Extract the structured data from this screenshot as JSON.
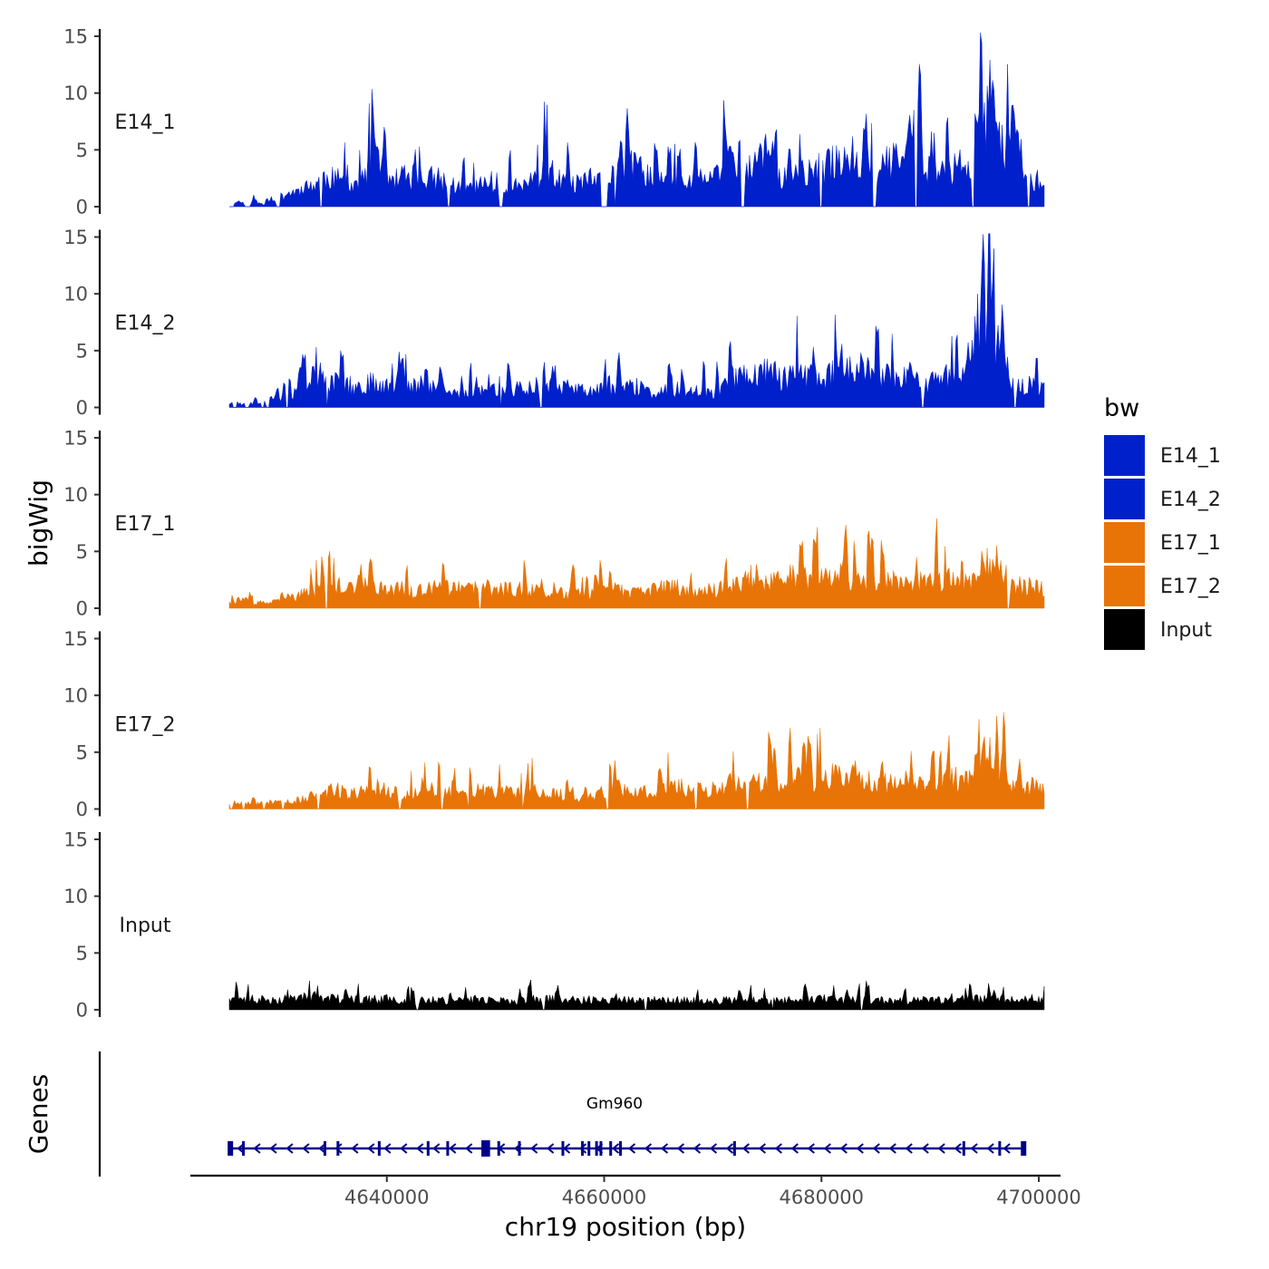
{
  "chart_data": {
    "type": "area",
    "xlabel": "chr19 position (bp)",
    "ylabel": "bigWig",
    "genes_ylabel": "Genes",
    "xlim": [
      4622000,
      4702000
    ],
    "data_xrange": [
      4625500,
      4700500
    ],
    "x_ticks": [
      4640000,
      4660000,
      4680000,
      4700000
    ],
    "x_tick_labels": [
      "4640000",
      "4660000",
      "4680000",
      "4700000"
    ],
    "ylim": [
      0,
      15
    ],
    "y_ticks": [
      0,
      5,
      10,
      15
    ],
    "y_tick_labels": [
      "0",
      "5",
      "10",
      "15"
    ],
    "legend": {
      "title": "bw",
      "entries": [
        {
          "label": "E14_1",
          "color": "#0020CC"
        },
        {
          "label": "E14_2",
          "color": "#0020CC"
        },
        {
          "label": "E17_1",
          "color": "#E87408"
        },
        {
          "label": "E17_2",
          "color": "#E87408"
        },
        {
          "label": "Input",
          "color": "#000000"
        }
      ]
    },
    "series": [
      {
        "name": "E14_1",
        "color": "#0020CC",
        "base": [
          0.3,
          0.6,
          0.3,
          0.6,
          0.3,
          0.4,
          0.9,
          1.4,
          1.6,
          1.9,
          2.2,
          3.0,
          3.1,
          2.9,
          2.6,
          2.2,
          2.6,
          4.0,
          4.2,
          3.9,
          3.0,
          2.4,
          2.7,
          2.9,
          3.1,
          3.0,
          2.7,
          2.4,
          2.0,
          1.9,
          2.2,
          2.4,
          2.6,
          2.4,
          2.3,
          2.2,
          2.5,
          2.6,
          3.5,
          3.9,
          2.8,
          2.4,
          2.4,
          2.6,
          2.9,
          2.6,
          2.7,
          3.9,
          4.3,
          4.2,
          4.0,
          3.3,
          2.7,
          2.6,
          2.6,
          2.4,
          2.6,
          3.1,
          3.1,
          3.0,
          4.2,
          5.0,
          4.7,
          4.3,
          4.4,
          5.0,
          5.3,
          3.0,
          3.2,
          3.4,
          3.6,
          3.8,
          4.0,
          4.5,
          5.1,
          5.6,
          5.1,
          4.7,
          4.6,
          4.8,
          4.6,
          4.8,
          5.2,
          6.0,
          4.4,
          3.4,
          3.5,
          3.7,
          3.9,
          4.6,
          5.2,
          8.6,
          10.2,
          8.0,
          6.0,
          4.6,
          3.3,
          3.1,
          2.8,
          2.2
        ],
        "peaks": [
          [
            4639100,
            2.0,
            150
          ],
          [
            4641500,
            2.0,
            150
          ],
          [
            4642600,
            2.5,
            150
          ],
          [
            4661500,
            3.0,
            150
          ],
          [
            4668400,
            3.0,
            150
          ],
          [
            4670400,
            1.0,
            150
          ],
          [
            4674900,
            3.0,
            150
          ],
          [
            4688000,
            3.0,
            150
          ],
          [
            4689100,
            4.5,
            150
          ],
          [
            4690100,
            3.5,
            150
          ],
          [
            4695600,
            4.0,
            150
          ],
          [
            4696100,
            3.0,
            150
          ]
        ],
        "gaps": [
          [
            4625500,
            4625900
          ],
          [
            4627000,
            4627400
          ],
          [
            4629800,
            4630200
          ],
          [
            4633800,
            4634000
          ],
          [
            4645600,
            4645800
          ],
          [
            4650300,
            4650700
          ],
          [
            4659700,
            4660300
          ],
          [
            4660900,
            4661100
          ],
          [
            4672600,
            4672900
          ],
          [
            4679800,
            4680100
          ],
          [
            4684700,
            4685000
          ],
          [
            4688600,
            4688800
          ],
          [
            4693800,
            4694100
          ],
          [
            4699000,
            4699200
          ]
        ],
        "seed": 11
      },
      {
        "name": "E14_2",
        "color": "#0020CC",
        "base": [
          0.4,
          0.5,
          0.3,
          0.5,
          0.3,
          0.5,
          0.9,
          1.1,
          1.6,
          2.0,
          2.2,
          2.6,
          2.8,
          2.6,
          2.3,
          2.1,
          2.4,
          2.6,
          2.6,
          2.4,
          2.2,
          2.2,
          2.1,
          2.4,
          2.6,
          2.3,
          1.7,
          1.5,
          1.6,
          1.8,
          1.8,
          1.9,
          1.8,
          1.6,
          1.8,
          2.0,
          2.1,
          2.2,
          2.2,
          2.2,
          2.2,
          2.1,
          2.0,
          1.8,
          1.8,
          1.8,
          1.9,
          1.9,
          2.1,
          2.2,
          2.1,
          1.6,
          1.5,
          1.7,
          1.9,
          1.9,
          2.0,
          2.1,
          1.6,
          1.5,
          2.2,
          3.3,
          3.4,
          3.3,
          3.6,
          3.8,
          4.1,
          3.1,
          3.2,
          3.3,
          3.4,
          3.2,
          3.1,
          3.3,
          4.2,
          4.4,
          4.4,
          4.3,
          3.4,
          3.3,
          3.3,
          3.4,
          3.3,
          3.0,
          2.5,
          2.5,
          3.0,
          3.3,
          3.4,
          3.3,
          4.0,
          9.0,
          10.0,
          7.0,
          5.0,
          3.0,
          2.5,
          2.4,
          2.1,
          1.9
        ],
        "peaks": [
          [
            4641100,
            1.5,
            150
          ],
          [
            4649400,
            1.0,
            150
          ],
          [
            4661400,
            2.0,
            150
          ],
          [
            4679200,
            2.5,
            150
          ],
          [
            4681800,
            2.5,
            150
          ],
          [
            4688100,
            2.5,
            150
          ],
          [
            4694900,
            4.0,
            150
          ]
        ],
        "gaps": [
          [
            4625800,
            4626200
          ],
          [
            4626900,
            4627300
          ],
          [
            4628500,
            4628700
          ],
          [
            4629000,
            4629200
          ],
          [
            4630700,
            4630900
          ],
          [
            4634400,
            4634600
          ],
          [
            4650400,
            4650600
          ],
          [
            4654100,
            4654300
          ],
          [
            4689200,
            4689400
          ],
          [
            4697700,
            4697900
          ]
        ],
        "seed": 23
      },
      {
        "name": "E17_1",
        "color": "#E87408",
        "base": [
          0.6,
          0.9,
          0.8,
          0.5,
          0.6,
          0.6,
          0.7,
          1.0,
          1.2,
          1.5,
          1.9,
          2.1,
          2.2,
          2.3,
          2.4,
          2.4,
          2.5,
          2.5,
          2.4,
          2.3,
          2.2,
          2.0,
          1.8,
          1.8,
          1.9,
          2.1,
          2.3,
          2.2,
          2.0,
          2.0,
          2.1,
          2.2,
          2.1,
          2.0,
          2.0,
          2.1,
          2.1,
          1.9,
          1.7,
          1.6,
          1.6,
          1.6,
          1.6,
          1.5,
          1.5,
          1.6,
          1.8,
          1.9,
          1.7,
          1.6,
          1.7,
          1.9,
          2.1,
          2.2,
          2.3,
          2.2,
          1.9,
          1.8,
          1.9,
          2.0,
          2.2,
          2.3,
          2.6,
          3.2,
          3.4,
          3.1,
          2.7,
          2.8,
          3.1,
          3.3,
          3.1,
          2.9,
          3.0,
          3.1,
          3.5,
          3.3,
          3.1,
          3.1,
          3.0,
          3.1,
          3.1,
          3.2,
          3.2,
          2.9,
          2.7,
          2.7,
          2.9,
          3.0,
          2.9,
          2.7,
          2.9,
          4.5,
          6.0,
          5.0,
          4.0,
          2.6,
          2.4,
          2.3,
          2.3,
          2.2
        ],
        "peaks": [
          [
            4659700,
            3.0,
            150
          ],
          [
            4682100,
            2.5,
            150
          ],
          [
            4690600,
            2.0,
            150
          ]
        ],
        "gaps": [
          [
            4634300,
            4634500
          ],
          [
            4648500,
            4648700
          ],
          [
            4697100,
            4697300
          ]
        ],
        "seed": 37
      },
      {
        "name": "E17_2",
        "color": "#E87408",
        "base": [
          0.8,
          0.8,
          0.6,
          0.6,
          0.6,
          0.7,
          0.7,
          0.8,
          0.9,
          1.1,
          1.4,
          1.6,
          1.9,
          2.0,
          1.8,
          1.6,
          1.8,
          2.1,
          2.3,
          2.1,
          1.8,
          1.6,
          1.6,
          1.7,
          1.9,
          2.1,
          2.0,
          1.7,
          1.5,
          1.6,
          1.9,
          2.0,
          1.9,
          1.8,
          1.8,
          1.9,
          1.9,
          1.9,
          1.8,
          1.6,
          1.6,
          1.6,
          1.3,
          1.1,
          1.2,
          1.5,
          1.8,
          2.1,
          2.1,
          1.9,
          1.7,
          1.8,
          2.1,
          2.4,
          2.3,
          2.4,
          2.1,
          2.1,
          2.1,
          2.1,
          2.2,
          2.7,
          2.6,
          2.6,
          2.8,
          2.9,
          2.9,
          2.6,
          3.0,
          3.1,
          3.2,
          3.2,
          3.1,
          3.3,
          3.6,
          3.6,
          3.8,
          3.4,
          2.8,
          2.7,
          2.7,
          2.9,
          3.0,
          2.8,
          2.6,
          2.6,
          2.8,
          3.1,
          3.1,
          3.1,
          3.1,
          5.0,
          6.0,
          5.0,
          4.0,
          2.6,
          2.6,
          2.5,
          2.3,
          2.2
        ],
        "peaks": [
          [
            4661000,
            2.5,
            150
          ],
          [
            4677100,
            4.0,
            150
          ],
          [
            4685500,
            2.0,
            150
          ],
          [
            4688300,
            2.0,
            150
          ],
          [
            4698300,
            1.5,
            150
          ]
        ],
        "gaps": [
          [
            4625600,
            4625800
          ],
          [
            4626700,
            4626900
          ],
          [
            4628600,
            4628800
          ],
          [
            4630300,
            4630500
          ],
          [
            4633600,
            4633800
          ],
          [
            4641100,
            4641300
          ],
          [
            4645000,
            4645200
          ],
          [
            4647400,
            4647600
          ],
          [
            4652400,
            4652600
          ],
          [
            4660200,
            4660400
          ],
          [
            4668300,
            4668500
          ],
          [
            4673100,
            4673300
          ]
        ],
        "seed": 53
      },
      {
        "name": "Input",
        "color": "#000000",
        "base": [
          1.0,
          1.2,
          1.2,
          1.1,
          1.1,
          1.1,
          1.1,
          1.2,
          1.3,
          1.3,
          1.3,
          1.3,
          1.2,
          1.2,
          1.1,
          1.1,
          1.1,
          1.2,
          1.1,
          1.1,
          1.1,
          1.0,
          1.0,
          1.0,
          1.1,
          1.1,
          1.0,
          1.0,
          1.0,
          1.0,
          1.1,
          1.1,
          1.0,
          1.0,
          1.0,
          1.0,
          1.0,
          1.1,
          1.1,
          1.1,
          1.2,
          1.1,
          1.1,
          1.1,
          1.1,
          1.1,
          1.1,
          1.2,
          1.2,
          1.1,
          1.0,
          1.0,
          1.0,
          1.0,
          1.0,
          1.0,
          1.0,
          1.0,
          1.0,
          1.0,
          1.0,
          1.0,
          1.0,
          1.0,
          1.0,
          1.0,
          1.0,
          1.0,
          1.0,
          1.1,
          1.1,
          1.2,
          1.2,
          1.1,
          1.0,
          1.0,
          1.0,
          1.1,
          1.1,
          1.0,
          1.0,
          1.0,
          1.0,
          1.0,
          1.0,
          1.0,
          1.0,
          1.0,
          1.1,
          1.1,
          1.1,
          1.1,
          1.1,
          1.1,
          1.1,
          1.1,
          1.2,
          1.2,
          1.1,
          1.1
        ],
        "peaks": [
          [
            4633600,
            0.8,
            150
          ],
          [
            4682300,
            0.8,
            150
          ]
        ],
        "gaps": [
          [
            4642700,
            4642900
          ],
          [
            4654300,
            4654500
          ],
          [
            4663700,
            4663900
          ],
          [
            4675400,
            4675600
          ],
          [
            4683600,
            4683800
          ]
        ],
        "seed": 71
      }
    ],
    "gene": {
      "label": "Gm960",
      "start": 4625600,
      "end": 4698600,
      "strand": "-",
      "color": "#00008B",
      "exons": [
        4625600,
        4626800,
        4634300,
        4635500,
        4639300,
        4643800,
        4645600,
        4648900,
        4650300,
        4652200,
        4656200,
        4658000,
        4658600,
        4659300,
        4659700,
        4660600,
        4661500,
        4672000,
        4693100,
        4696400,
        4698600
      ],
      "thick_exons": [
        [
          4648700,
          4649500
        ]
      ]
    }
  }
}
